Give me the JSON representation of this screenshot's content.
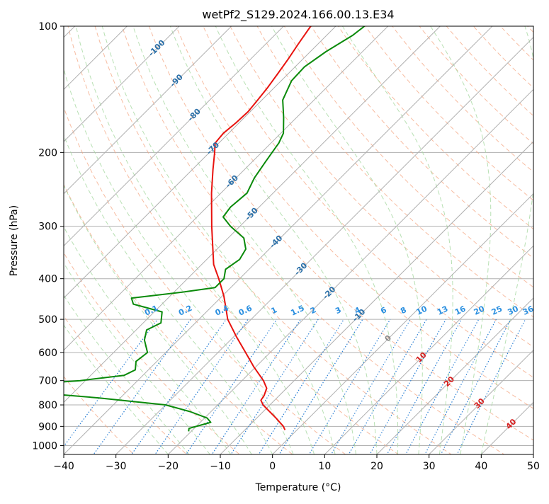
{
  "chart_data": {
    "type": "line",
    "title": "wetPf2_S129.2024.166.00.13.E34",
    "xlabel": "Temperature (°C)",
    "ylabel": "Pressure (hPa)",
    "xlim": [
      -40,
      50
    ],
    "ylim": [
      1050,
      100
    ],
    "y_scale": "log",
    "x_ticks": [
      -40,
      -30,
      -20,
      -10,
      0,
      10,
      20,
      30,
      40,
      50
    ],
    "y_ticks": [
      100,
      200,
      300,
      400,
      500,
      600,
      700,
      800,
      900,
      1000
    ],
    "grid": "horizontal isobars on, skewed isotherms on",
    "background_lines": {
      "isotherms_color": "#b0b0b0",
      "dry_adiabats_color": "#f4a582",
      "moist_adiabats_color": "#a6d8a0",
      "mixing_ratio_color": "#2a7fd4"
    },
    "isotherm_labels": [
      {
        "text": "-100",
        "T": -100,
        "p": 113
      },
      {
        "text": "-90",
        "T": -90,
        "p": 135
      },
      {
        "text": "-80",
        "T": -80,
        "p": 163
      },
      {
        "text": "-70",
        "T": -70,
        "p": 196
      },
      {
        "text": "-60",
        "T": -60,
        "p": 235
      },
      {
        "text": "-50",
        "T": -50,
        "p": 281
      },
      {
        "text": "-40",
        "T": -40,
        "p": 327
      },
      {
        "text": "-30",
        "T": -30,
        "p": 380
      },
      {
        "text": "-20",
        "T": -20,
        "p": 433
      },
      {
        "text": "-10",
        "T": -10,
        "p": 490
      },
      {
        "text": "0",
        "T": 0,
        "p": 556
      },
      {
        "text": "10",
        "T": 10,
        "p": 617
      },
      {
        "text": "20",
        "T": 20,
        "p": 705
      },
      {
        "text": "30",
        "T": 30,
        "p": 795
      },
      {
        "text": "40",
        "T": 40,
        "p": 890
      }
    ],
    "mixing_ratio_labels": [
      {
        "text": "0.1",
        "T": -23,
        "p": 490
      },
      {
        "text": "0.2",
        "T": -16.5,
        "p": 490
      },
      {
        "text": "0.4",
        "T": -9.5,
        "p": 490
      },
      {
        "text": "0.6",
        "T": -5,
        "p": 490
      },
      {
        "text": "1",
        "T": 0.5,
        "p": 490
      },
      {
        "text": "1.5",
        "T": 5,
        "p": 490
      },
      {
        "text": "2",
        "T": 8,
        "p": 490
      },
      {
        "text": "3",
        "T": 12.8,
        "p": 490
      },
      {
        "text": "4",
        "T": 16.5,
        "p": 490
      },
      {
        "text": "6",
        "T": 21.5,
        "p": 490
      },
      {
        "text": "8",
        "T": 25.3,
        "p": 490
      },
      {
        "text": "10",
        "T": 28.8,
        "p": 490
      },
      {
        "text": "13",
        "T": 32.8,
        "p": 490
      },
      {
        "text": "16",
        "T": 36.2,
        "p": 490
      },
      {
        "text": "20",
        "T": 39.8,
        "p": 490
      },
      {
        "text": "25",
        "T": 43.2,
        "p": 490
      },
      {
        "text": "30",
        "T": 46.3,
        "p": 490
      },
      {
        "text": "36",
        "T": 49.2,
        "p": 490
      }
    ],
    "series": [
      {
        "color": "#e8130f",
        "points": [
          {
            "p": 918,
            "T": -2.3
          },
          {
            "p": 900,
            "T": -3.3
          },
          {
            "p": 860,
            "T": -6.3
          },
          {
            "p": 820,
            "T": -9.6
          },
          {
            "p": 800,
            "T": -11.3
          },
          {
            "p": 780,
            "T": -12.6
          },
          {
            "p": 760,
            "T": -12.9
          },
          {
            "p": 730,
            "T": -13.8
          },
          {
            "p": 700,
            "T": -15.9
          },
          {
            "p": 650,
            "T": -20.3
          },
          {
            "p": 600,
            "T": -24.7
          },
          {
            "p": 550,
            "T": -29.5
          },
          {
            "p": 500,
            "T": -34.5
          },
          {
            "p": 470,
            "T": -37.0
          },
          {
            "p": 440,
            "T": -39.7
          },
          {
            "p": 400,
            "T": -44.0
          },
          {
            "p": 370,
            "T": -47.7
          },
          {
            "p": 330,
            "T": -51.9
          },
          {
            "p": 300,
            "T": -55.4
          },
          {
            "p": 250,
            "T": -61.8
          },
          {
            "p": 220,
            "T": -66.0
          },
          {
            "p": 200,
            "T": -69.0
          },
          {
            "p": 190,
            "T": -70.7
          },
          {
            "p": 180,
            "T": -71.0
          },
          {
            "p": 170,
            "T": -70.6
          },
          {
            "p": 160,
            "T": -70.4
          },
          {
            "p": 150,
            "T": -70.8
          },
          {
            "p": 140,
            "T": -71.3
          },
          {
            "p": 130,
            "T": -72.0
          },
          {
            "p": 120,
            "T": -72.8
          },
          {
            "p": 110,
            "T": -73.8
          },
          {
            "p": 100,
            "T": -74.8
          }
        ]
      },
      {
        "color": "#0a8a0a",
        "points": [
          {
            "p": 925,
            "T": -20.5
          },
          {
            "p": 910,
            "T": -21.0
          },
          {
            "p": 880,
            "T": -18.0
          },
          {
            "p": 860,
            "T": -19.5
          },
          {
            "p": 830,
            "T": -24.0
          },
          {
            "p": 800,
            "T": -30.0
          },
          {
            "p": 770,
            "T": -44.0
          },
          {
            "p": 750,
            "T": -56.0
          },
          {
            "p": 730,
            "T": -63.0
          },
          {
            "p": 720,
            "T": -64.0
          },
          {
            "p": 700,
            "T": -51.0
          },
          {
            "p": 680,
            "T": -43.6
          },
          {
            "p": 660,
            "T": -42.5
          },
          {
            "p": 630,
            "T": -44.0
          },
          {
            "p": 600,
            "T": -43.5
          },
          {
            "p": 560,
            "T": -46.5
          },
          {
            "p": 530,
            "T": -48.0
          },
          {
            "p": 510,
            "T": -46.6
          },
          {
            "p": 480,
            "T": -48.5
          },
          {
            "p": 460,
            "T": -55.5
          },
          {
            "p": 445,
            "T": -57.0
          },
          {
            "p": 430,
            "T": -48.0
          },
          {
            "p": 420,
            "T": -43.0
          },
          {
            "p": 400,
            "T": -43.0
          },
          {
            "p": 380,
            "T": -44.5
          },
          {
            "p": 360,
            "T": -43.7
          },
          {
            "p": 340,
            "T": -44.5
          },
          {
            "p": 320,
            "T": -47.0
          },
          {
            "p": 300,
            "T": -51.8
          },
          {
            "p": 285,
            "T": -55.0
          },
          {
            "p": 270,
            "T": -55.5
          },
          {
            "p": 250,
            "T": -55.0
          },
          {
            "p": 230,
            "T": -56.5
          },
          {
            "p": 210,
            "T": -57.5
          },
          {
            "p": 190,
            "T": -58.5
          },
          {
            "p": 180,
            "T": -59.5
          },
          {
            "p": 165,
            "T": -62.5
          },
          {
            "p": 150,
            "T": -66.0
          },
          {
            "p": 135,
            "T": -68.0
          },
          {
            "p": 125,
            "T": -68.2
          },
          {
            "p": 115,
            "T": -67.0
          },
          {
            "p": 105,
            "T": -65.0
          },
          {
            "p": 100,
            "T": -64.5
          }
        ]
      }
    ]
  }
}
